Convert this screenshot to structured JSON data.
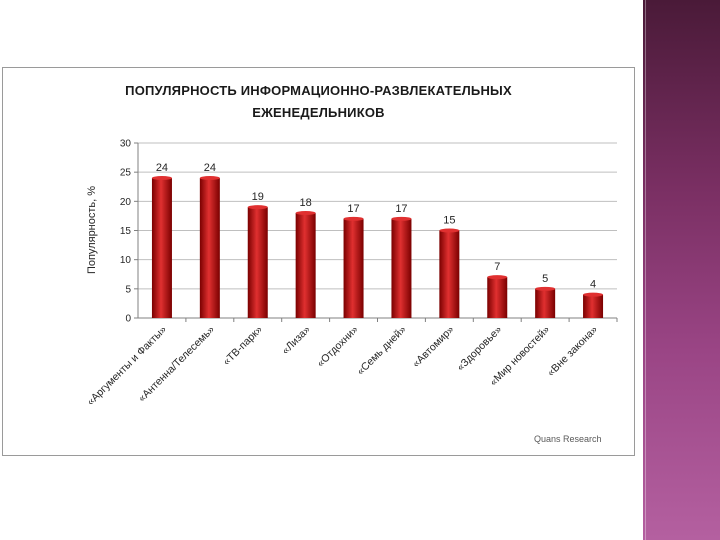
{
  "colors": {
    "bar": "#c00000",
    "bar_dark": "#7a0000",
    "bar_light": "#e03030",
    "grid": "#bfbfbf",
    "side_stripe": "#7a2f63"
  },
  "source_note": "Quans Research",
  "chart_data": {
    "type": "bar",
    "title_lines": [
      "ПОПУЛЯРНОСТЬ ИНФОРМАЦИОННО-РАЗВЛЕКАТЕЛЬНЫХ",
      "ЕЖЕНЕДЕЛЬНИКОВ"
    ],
    "ylabel": "Популярность, %",
    "xlabel": "",
    "ylim": [
      0,
      30
    ],
    "yticks": [
      0,
      5,
      10,
      15,
      20,
      25,
      30
    ],
    "grid": true,
    "categories": [
      "«Аргументы и Факты»",
      "«Антенна/Телесемь»",
      "«ТВ-парк»",
      "«Лиза»",
      "«Отдохни»",
      "«Семь дней»",
      "«Автомир»",
      "«Здоровье»",
      "«Мир новостей»",
      "«Вне закона»"
    ],
    "values": [
      24,
      24,
      19,
      18,
      17,
      17,
      15,
      7,
      5,
      4
    ]
  }
}
